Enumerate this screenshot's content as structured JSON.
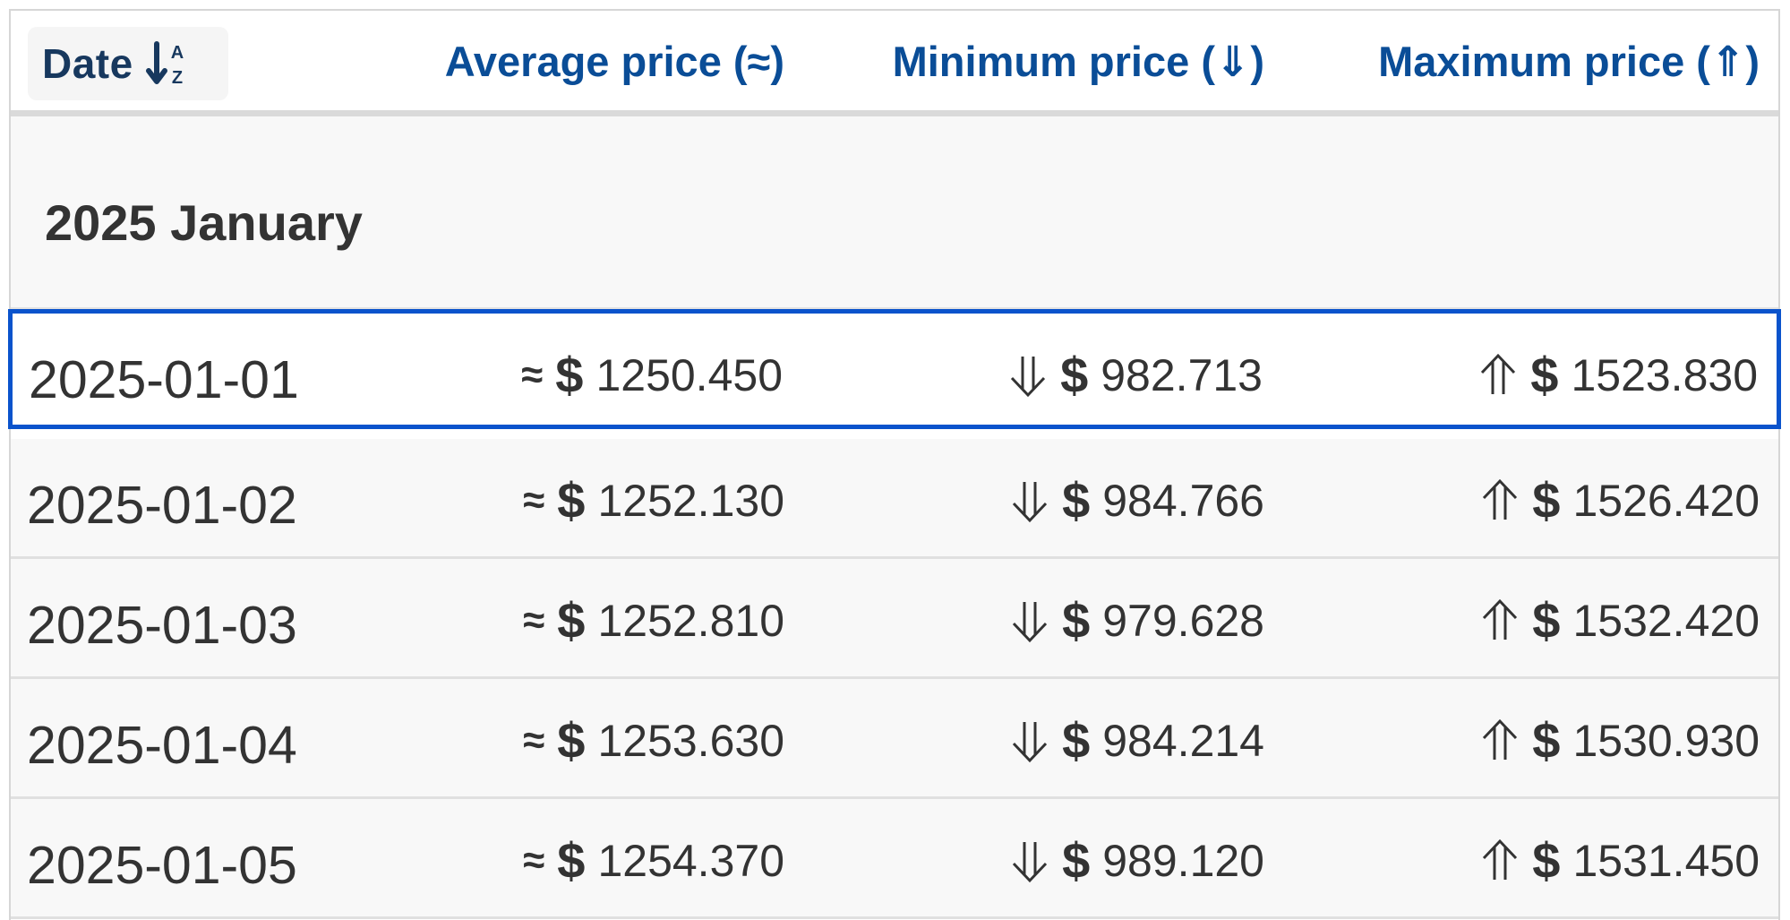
{
  "header": {
    "date_label": "Date",
    "sort_icon": "sort-a-z-icon",
    "average_label": "Average price (≈)",
    "minimum_label": "Minimum price (⇓)",
    "maximum_label": "Maximum price (⇑)"
  },
  "group": {
    "title": "2025 January"
  },
  "symbols": {
    "approx": "≈",
    "currency": "$"
  },
  "rows": [
    {
      "date": "2025-01-01",
      "average": "1250.450",
      "minimum": "982.713",
      "maximum": "1523.830",
      "selected": true
    },
    {
      "date": "2025-01-02",
      "average": "1252.130",
      "minimum": "984.766",
      "maximum": "1526.420"
    },
    {
      "date": "2025-01-03",
      "average": "1252.810",
      "minimum": "979.628",
      "maximum": "1532.420"
    },
    {
      "date": "2025-01-04",
      "average": "1253.630",
      "minimum": "984.214",
      "maximum": "1530.930"
    },
    {
      "date": "2025-01-05",
      "average": "1254.370",
      "minimum": "989.120",
      "maximum": "1531.450"
    }
  ],
  "colors": {
    "header_text": "#0a4d97",
    "date_sort_text": "#17385e",
    "selection_border": "#0a53cc",
    "row_bg": "#f8f8f8"
  }
}
